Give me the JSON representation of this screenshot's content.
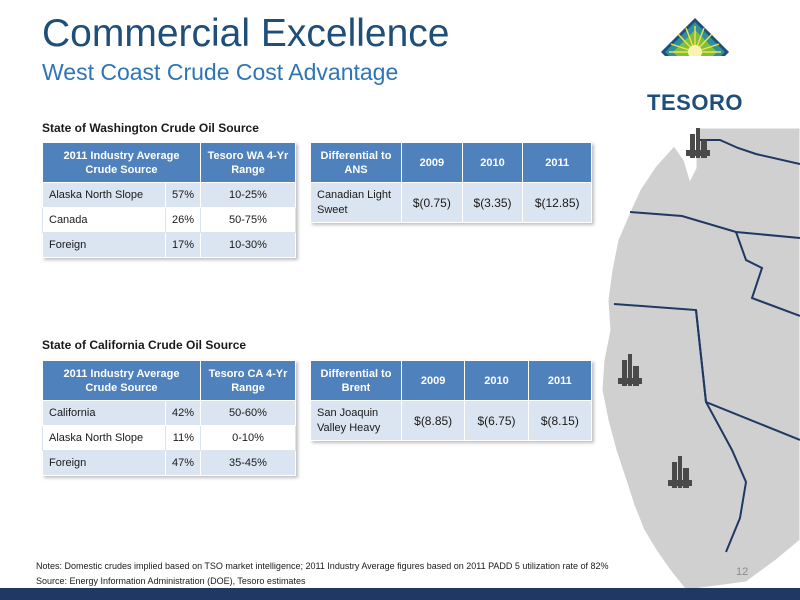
{
  "header": {
    "title": "Commercial Excellence",
    "subtitle": "West Coast Crude Cost Advantage"
  },
  "logo": {
    "text": "TESORO",
    "icon": "tesoro-logo-icon"
  },
  "washington": {
    "section_title": "State of Washington Crude Oil Source",
    "source_table": {
      "header_source": "2011 Industry Average Crude Source",
      "header_range": "Tesoro WA 4-Yr Range",
      "rows": [
        {
          "name": "Alaska North Slope",
          "pct": "57%",
          "range": "10-25%"
        },
        {
          "name": "Canada",
          "pct": "26%",
          "range": "50-75%"
        },
        {
          "name": "Foreign",
          "pct": "17%",
          "range": "10-30%"
        }
      ]
    },
    "diff_table": {
      "header_label": "Differential to ANS",
      "years": [
        "2009",
        "2010",
        "2011"
      ],
      "row_label": "Canadian Light Sweet",
      "values": [
        "$(0.75)",
        "$(3.35)",
        "$(12.85)"
      ]
    }
  },
  "california": {
    "section_title": "State of California Crude Oil Source",
    "source_table": {
      "header_source": "2011 Industry Average Crude Source",
      "header_range": "Tesoro CA 4-Yr Range",
      "rows": [
        {
          "name": "California",
          "pct": "42%",
          "range": "50-60%"
        },
        {
          "name": "Alaska North Slope",
          "pct": "11%",
          "range": "0-10%"
        },
        {
          "name": "Foreign",
          "pct": "47%",
          "range": "35-45%"
        }
      ]
    },
    "diff_table": {
      "header_label": "Differential to Brent",
      "years": [
        "2009",
        "2010",
        "2011"
      ],
      "row_label": "San Joaquin Valley Heavy",
      "values": [
        "$(8.85)",
        "$(6.75)",
        "$(8.15)"
      ]
    }
  },
  "footer": {
    "notes": "Notes: Domestic crudes implied based on TSO market intelligence; 2011 Industry Average figures based on 2011 PADD 5 utilization rate of 82%",
    "source": "Source: Energy Information Administration (DOE), Tesoro estimates",
    "page_number": "12"
  },
  "colors": {
    "title": "#1f4e79",
    "subtitle": "#2e75b6",
    "table_header": "#4f81bd",
    "table_band": "#dbe5f1",
    "map_fill": "#d0d0d0",
    "footer_bar": "#1f3864"
  },
  "map": {
    "icon": "refinery-icon"
  }
}
